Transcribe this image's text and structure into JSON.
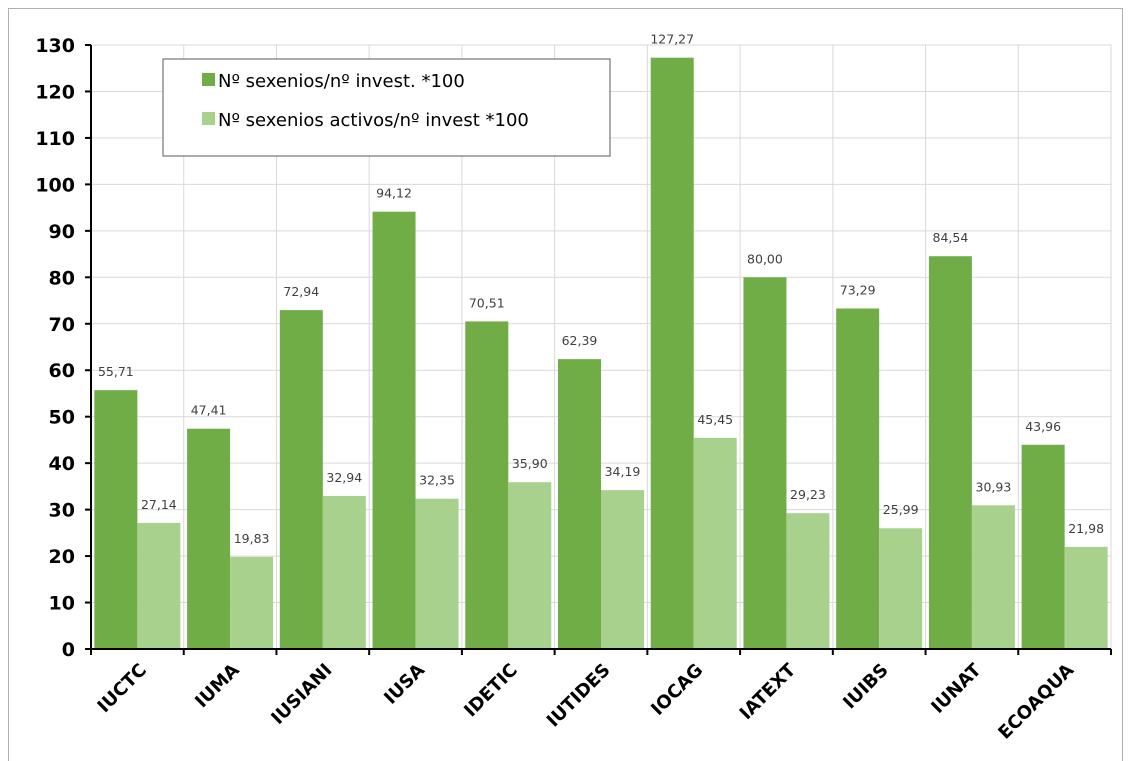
{
  "chart_data": {
    "type": "bar",
    "categories": [
      "IUCTC",
      "IUMA",
      "IUSIANI",
      "IUSA",
      "IDETIC",
      "IUTIDES",
      "IOCAG",
      "IATEXT",
      "IUIBS",
      "IUNAT",
      "ECOAQUA"
    ],
    "series": [
      {
        "name": "Nº sexenios/nº invest. *100",
        "color": "#70ad47",
        "values": [
          55.71,
          47.41,
          72.94,
          94.12,
          70.51,
          62.39,
          127.27,
          80.0,
          73.29,
          84.54,
          43.96
        ],
        "labels": [
          "55,71",
          "47,41",
          "72,94",
          "94,12",
          "70,51",
          "62,39",
          "127,27",
          "80,00",
          "73,29",
          "84,54",
          "43,96"
        ]
      },
      {
        "name": "Nº sexenios activos/nº invest *100",
        "color": "#a9d18e",
        "values": [
          27.14,
          19.83,
          32.94,
          32.35,
          35.9,
          34.19,
          45.45,
          29.23,
          25.99,
          30.93,
          21.98
        ],
        "labels": [
          "27,14",
          "19,83",
          "32,94",
          "32,35",
          "35,90",
          "34,19",
          "45,45",
          "29,23",
          "25,99",
          "30,93",
          "21,98"
        ]
      }
    ],
    "ylim": [
      0,
      130
    ],
    "ytick_step": 10,
    "yticks": [
      "0",
      "10",
      "20",
      "30",
      "40",
      "50",
      "60",
      "70",
      "80",
      "90",
      "100",
      "110",
      "120",
      "130"
    ],
    "grid": true,
    "legend_position": "top-left"
  }
}
